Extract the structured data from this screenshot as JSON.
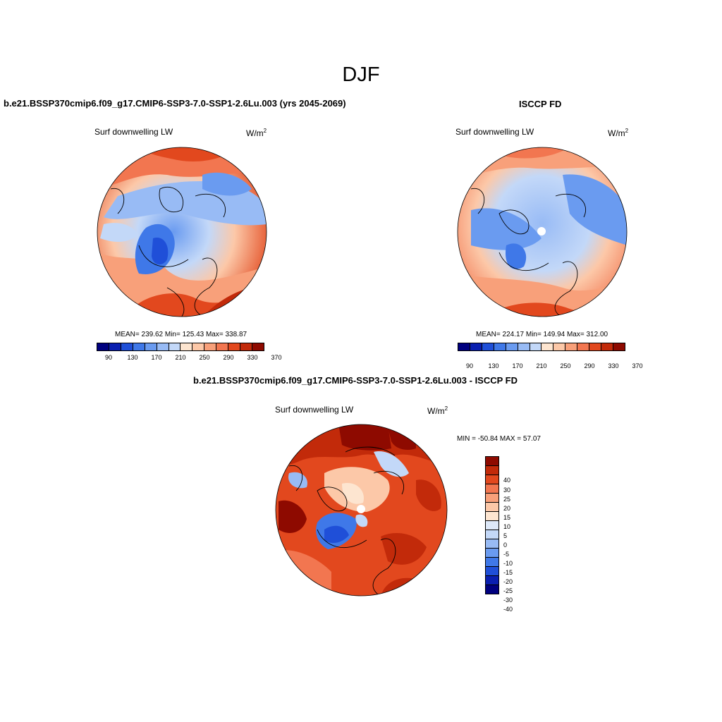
{
  "page": {
    "season": "DJF",
    "diff_title": "b.e21.BSSP370cmip6.f09_g17.CMIP6-SSP3-7.0-SSP1-2.6Lu.003 - ISCCP FD"
  },
  "panels": [
    {
      "title": "b.e21.BSSP370cmip6.f09_g17.CMIP6-SSP3-7.0-SSP1-2.6Lu.003 (yrs 2045-2069)",
      "variable": "Surf downwelling LW",
      "unit_base": "W/m",
      "unit_exp": "2",
      "stats": "MEAN= 239.62  Min= 125.43  Max= 338.87"
    },
    {
      "title": "ISCCP FD",
      "variable": "Surf downwelling LW",
      "unit_base": "W/m",
      "unit_exp": "2",
      "stats": "MEAN= 224.17  Min= 149.94  Max= 312.00"
    }
  ],
  "diff_panel": {
    "variable": "Surf downwelling LW",
    "unit_base": "W/m",
    "unit_exp": "2",
    "minmax": "MIN = -50.84 MAX =  57.07"
  },
  "colorbar_main": {
    "colors": [
      "#00007f",
      "#0a1fb0",
      "#1f4fd8",
      "#3f78e8",
      "#6a9bf0",
      "#98bbf5",
      "#c3d8f8",
      "#fde5d0",
      "#fcc8a8",
      "#f8a07a",
      "#f27650",
      "#e2481e",
      "#c22a0a",
      "#8e0a00"
    ],
    "labels": [
      "90",
      "130",
      "170",
      "210",
      "250",
      "290",
      "330",
      "370"
    ]
  },
  "colorbar_diff": {
    "colors": [
      "#8e0a00",
      "#c22a0a",
      "#e2481e",
      "#f27650",
      "#f8a07a",
      "#fcc8a8",
      "#fde5d0",
      "#dde8f8",
      "#c3d8f8",
      "#98bbf5",
      "#6a9bf0",
      "#3f78e8",
      "#1f4fd8",
      "#0a1fb0",
      "#00007f"
    ],
    "labels": [
      "40",
      "30",
      "25",
      "20",
      "15",
      "10",
      "5",
      "0",
      "-5",
      "-10",
      "-15",
      "-20",
      "-25",
      "-30",
      "-40"
    ]
  }
}
